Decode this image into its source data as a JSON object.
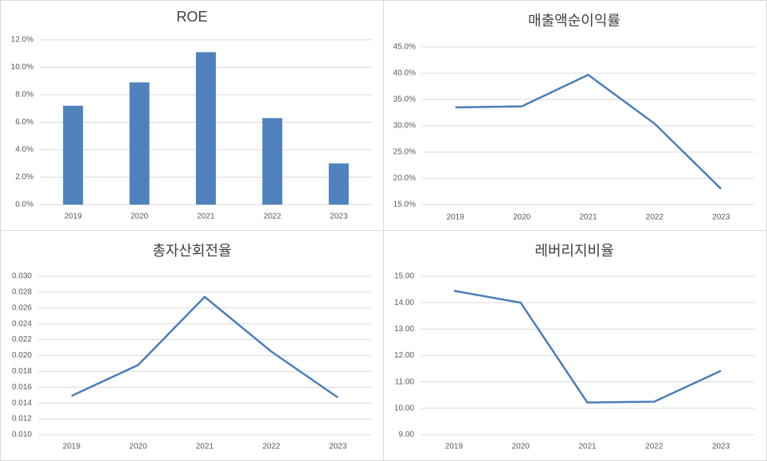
{
  "chart_data": [
    {
      "type": "bar",
      "title": "ROE",
      "categories": [
        "2019",
        "2020",
        "2021",
        "2022",
        "2023"
      ],
      "values": [
        7.2,
        8.9,
        11.1,
        6.3,
        3.0
      ],
      "color": "#4f81bd",
      "ylim": [
        0,
        12
      ],
      "yticks": [
        {
          "value": 0,
          "label": "0.0%"
        },
        {
          "value": 2,
          "label": "2.0%"
        },
        {
          "value": 4,
          "label": "4.0%"
        },
        {
          "value": 6,
          "label": "6.0%"
        },
        {
          "value": 8,
          "label": "8.0%"
        },
        {
          "value": 10,
          "label": "10.0%"
        },
        {
          "value": 12,
          "label": "12.0%"
        }
      ],
      "grid": true
    },
    {
      "type": "line",
      "title": "매출액순이익률",
      "categories": [
        "2019",
        "2020",
        "2021",
        "2022",
        "2023"
      ],
      "values": [
        33.5,
        33.7,
        39.7,
        30.4,
        18.0
      ],
      "color": "#4a7ebb",
      "ylim": [
        15,
        45
      ],
      "yticks": [
        {
          "value": 15,
          "label": "15.0%"
        },
        {
          "value": 20,
          "label": "20.0%"
        },
        {
          "value": 25,
          "label": "25.0%"
        },
        {
          "value": 30,
          "label": "30.0%"
        },
        {
          "value": 35,
          "label": "35.0%"
        },
        {
          "value": 40,
          "label": "40.0%"
        },
        {
          "value": 45,
          "label": "45.0%"
        }
      ],
      "grid": true
    },
    {
      "type": "line",
      "title": "총자산회전율",
      "categories": [
        "2019",
        "2020",
        "2021",
        "2022",
        "2023"
      ],
      "values": [
        0.0149,
        0.0188,
        0.0274,
        0.0205,
        0.0147
      ],
      "color": "#4a7ebb",
      "ylim": [
        0.01,
        0.03
      ],
      "yticks": [
        {
          "value": 0.01,
          "label": "0.010"
        },
        {
          "value": 0.012,
          "label": "0.012"
        },
        {
          "value": 0.014,
          "label": "0.014"
        },
        {
          "value": 0.016,
          "label": "0.016"
        },
        {
          "value": 0.018,
          "label": "0.018"
        },
        {
          "value": 0.02,
          "label": "0.020"
        },
        {
          "value": 0.022,
          "label": "0.022"
        },
        {
          "value": 0.024,
          "label": "0.024"
        },
        {
          "value": 0.026,
          "label": "0.026"
        },
        {
          "value": 0.028,
          "label": "0.028"
        },
        {
          "value": 0.03,
          "label": "0.030"
        }
      ],
      "grid": true
    },
    {
      "type": "line",
      "title": "레버리지비율",
      "categories": [
        "2019",
        "2020",
        "2021",
        "2022",
        "2023"
      ],
      "values": [
        14.45,
        14.0,
        10.22,
        10.25,
        11.42
      ],
      "color": "#4a7ebb",
      "ylim": [
        9,
        15
      ],
      "yticks": [
        {
          "value": 9,
          "label": "9.00"
        },
        {
          "value": 10,
          "label": "10.00"
        },
        {
          "value": 11,
          "label": "11.00"
        },
        {
          "value": 12,
          "label": "12.00"
        },
        {
          "value": 13,
          "label": "13.00"
        },
        {
          "value": 14,
          "label": "14.00"
        },
        {
          "value": 15,
          "label": "15.00"
        }
      ],
      "grid": true
    }
  ]
}
